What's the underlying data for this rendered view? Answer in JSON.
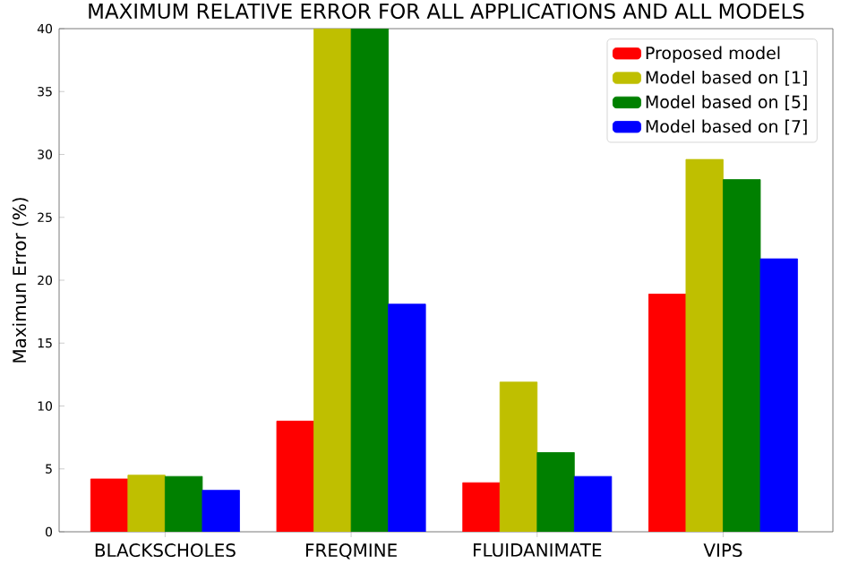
{
  "chart_data": {
    "type": "bar",
    "title": "MAXIMUM RELATIVE ERROR FOR ALL APPLICATIONS AND ALL MODELS",
    "ylabel": "Maximun Error (%)",
    "categories": [
      "BLACKSCHOLES",
      "FREQMINE",
      "FLUIDANIMATE",
      "VIPS"
    ],
    "series": [
      {
        "name": "Proposed model",
        "color": "#ff0000",
        "values": [
          4.2,
          8.8,
          3.9,
          18.9
        ]
      },
      {
        "name": "Model based on [1]",
        "color": "#bfbf00",
        "values": [
          4.5,
          40,
          11.9,
          29.6
        ]
      },
      {
        "name": "Model based on [5]",
        "color": "#008000",
        "values": [
          4.4,
          40,
          6.3,
          28.0
        ]
      },
      {
        "name": "Model based on [7]",
        "color": "#0000ff",
        "values": [
          3.3,
          18.1,
          4.4,
          21.7
        ]
      }
    ],
    "ylim": [
      0,
      40
    ],
    "yticks": [
      0,
      5,
      10,
      15,
      20,
      25,
      30,
      35,
      40
    ],
    "legend": "top right"
  }
}
